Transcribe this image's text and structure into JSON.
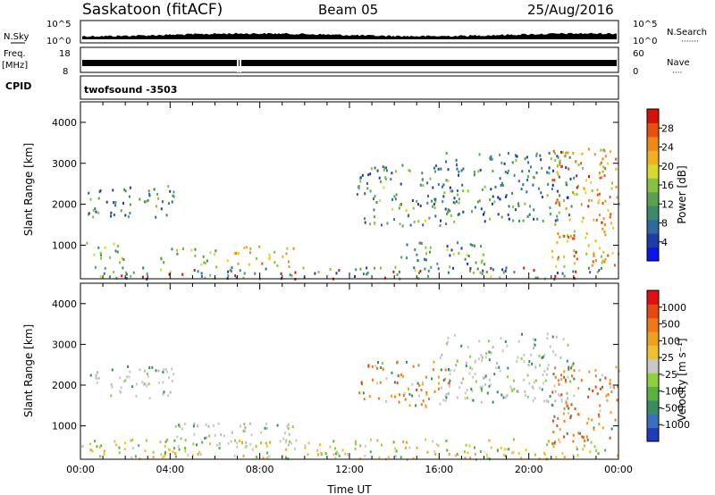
{
  "header": {
    "title": "Saskatoon (fitACF)",
    "beam": "Beam 05",
    "date": "25/Aug/2016"
  },
  "strips": {
    "nsky_label": "N.Sky",
    "nsky_ticks": [
      "10^5",
      "10^0"
    ],
    "nsearch_label": "N.Search",
    "nsearch_ticks": [
      "10^5",
      "10^0"
    ],
    "freq_label_1": "Freq.",
    "freq_label_2": "[MHz]",
    "freq_ticks": [
      "18",
      "8"
    ],
    "nave_label": "Nave",
    "nave_ticks": [
      "60",
      "0"
    ],
    "cpid_label": "CPID",
    "cpid_value": "twofsound  -3503"
  },
  "chart_data": [
    {
      "type": "heatmap",
      "name": "power",
      "ylabel": "Slant Range [km]",
      "yticks": [
        1000,
        2000,
        3000,
        4000
      ],
      "ylim": [
        180,
        4500
      ],
      "xlim_hours": [
        0,
        24
      ],
      "colorbar": {
        "title": "Power [dB]",
        "ticks": [
          "4",
          "8",
          "12",
          "16",
          "20",
          "24",
          "28"
        ],
        "colors": [
          "#0a14f0",
          "#1e3ca8",
          "#2e6aa0",
          "#3c8a6c",
          "#5aa050",
          "#88c040",
          "#d8d830",
          "#f0b020",
          "#f08818",
          "#e85010",
          "#d81008"
        ]
      },
      "echo_regions": [
        {
          "t0": 0.3,
          "t1": 4.2,
          "r0": 1700,
          "r1": 2500,
          "level": 0.3
        },
        {
          "t0": 0.2,
          "t1": 2.0,
          "r0": 600,
          "r1": 1100,
          "level": 0.5
        },
        {
          "t0": 3.5,
          "t1": 6.0,
          "r0": 550,
          "r1": 1000,
          "level": 0.45
        },
        {
          "t0": 6.5,
          "t1": 9.5,
          "r0": 500,
          "r1": 1000,
          "level": 0.6
        },
        {
          "t0": 0.0,
          "t1": 24.0,
          "r0": 200,
          "r1": 500,
          "level": 0.35
        },
        {
          "t0": 12.3,
          "t1": 16.5,
          "r0": 1500,
          "r1": 3000,
          "level": 0.35
        },
        {
          "t0": 16.0,
          "t1": 22.0,
          "r0": 1600,
          "r1": 3300,
          "level": 0.3
        },
        {
          "t0": 21.0,
          "t1": 24.0,
          "r0": 500,
          "r1": 3400,
          "level": 0.7
        },
        {
          "t0": 14.0,
          "t1": 18.0,
          "r0": 500,
          "r1": 1100,
          "level": 0.35
        }
      ]
    },
    {
      "type": "heatmap",
      "name": "velocity",
      "ylabel": "Slant Range [km]",
      "yticks": [
        1000,
        2000,
        3000,
        4000
      ],
      "ylim": [
        180,
        4500
      ],
      "xlim_hours": [
        0,
        24
      ],
      "xticks": [
        "00:00",
        "04:00",
        "08:00",
        "12:00",
        "16:00",
        "20:00",
        "00:00"
      ],
      "xlabel": "Time UT",
      "colorbar": {
        "title": "Velocity [m s^-1]",
        "ticks": [
          "1000",
          "500",
          "100",
          "25",
          "-25",
          "-100",
          "-500",
          "-1000"
        ],
        "colors": [
          "#1e3cb8",
          "#3a6ec0",
          "#3a8c60",
          "#5ab040",
          "#8cd040",
          "#c8c8c8",
          "#f0c030",
          "#f0a020",
          "#f07818",
          "#e84810",
          "#e01010"
        ]
      },
      "echo_regions": [
        {
          "t0": 0.3,
          "t1": 4.2,
          "r0": 1700,
          "r1": 2500,
          "v": "grey"
        },
        {
          "t0": 3.5,
          "t1": 9.5,
          "r0": 500,
          "r1": 1100,
          "v": "grey"
        },
        {
          "t0": 0.0,
          "t1": 24.0,
          "r0": 200,
          "r1": 700,
          "v": "yellow"
        },
        {
          "t0": 12.3,
          "t1": 16.5,
          "r0": 1500,
          "r1": 2600,
          "v": "orange"
        },
        {
          "t0": 16.0,
          "t1": 22.0,
          "r0": 1600,
          "r1": 3300,
          "v": "grey"
        },
        {
          "t0": 21.0,
          "t1": 24.0,
          "r0": 600,
          "r1": 2500,
          "v": "orange"
        }
      ]
    }
  ]
}
